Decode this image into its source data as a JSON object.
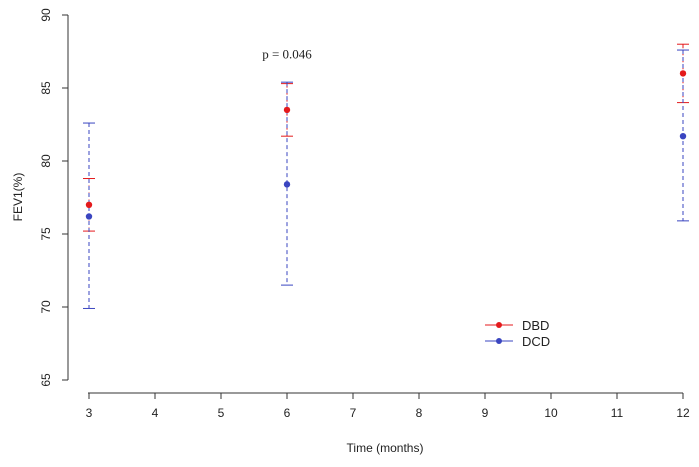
{
  "chart_data": {
    "type": "scatter",
    "xlabel": "Time (months)",
    "ylabel": "FEV1(%)",
    "xlim": [
      3,
      12
    ],
    "ylim": [
      65,
      90
    ],
    "x_ticks": [
      3,
      4,
      5,
      6,
      7,
      8,
      9,
      10,
      11,
      12
    ],
    "y_ticks": [
      65,
      70,
      75,
      80,
      85,
      90
    ],
    "grid": false,
    "legend_position": "bottom-center",
    "annotations": [
      {
        "text": "p = 0.046",
        "x": 6,
        "y": 87.3
      }
    ],
    "series": [
      {
        "name": "DBD",
        "color": "#e41a1c",
        "error_bar_style": "dashed",
        "points": [
          {
            "x": 3,
            "y": 77.0,
            "low": 75.2,
            "high": 78.8
          },
          {
            "x": 6,
            "y": 83.5,
            "low": 81.7,
            "high": 85.3
          },
          {
            "x": 12,
            "y": 86.0,
            "low": 84.0,
            "high": 88.0
          }
        ]
      },
      {
        "name": "DCD",
        "color": "#3a45c0",
        "error_bar_style": "dashed",
        "points": [
          {
            "x": 3,
            "y": 76.2,
            "low": 69.9,
            "high": 82.6
          },
          {
            "x": 6,
            "y": 78.4,
            "low": 71.5,
            "high": 85.4
          },
          {
            "x": 12,
            "y": 81.7,
            "low": 75.9,
            "high": 87.6
          }
        ]
      }
    ]
  }
}
